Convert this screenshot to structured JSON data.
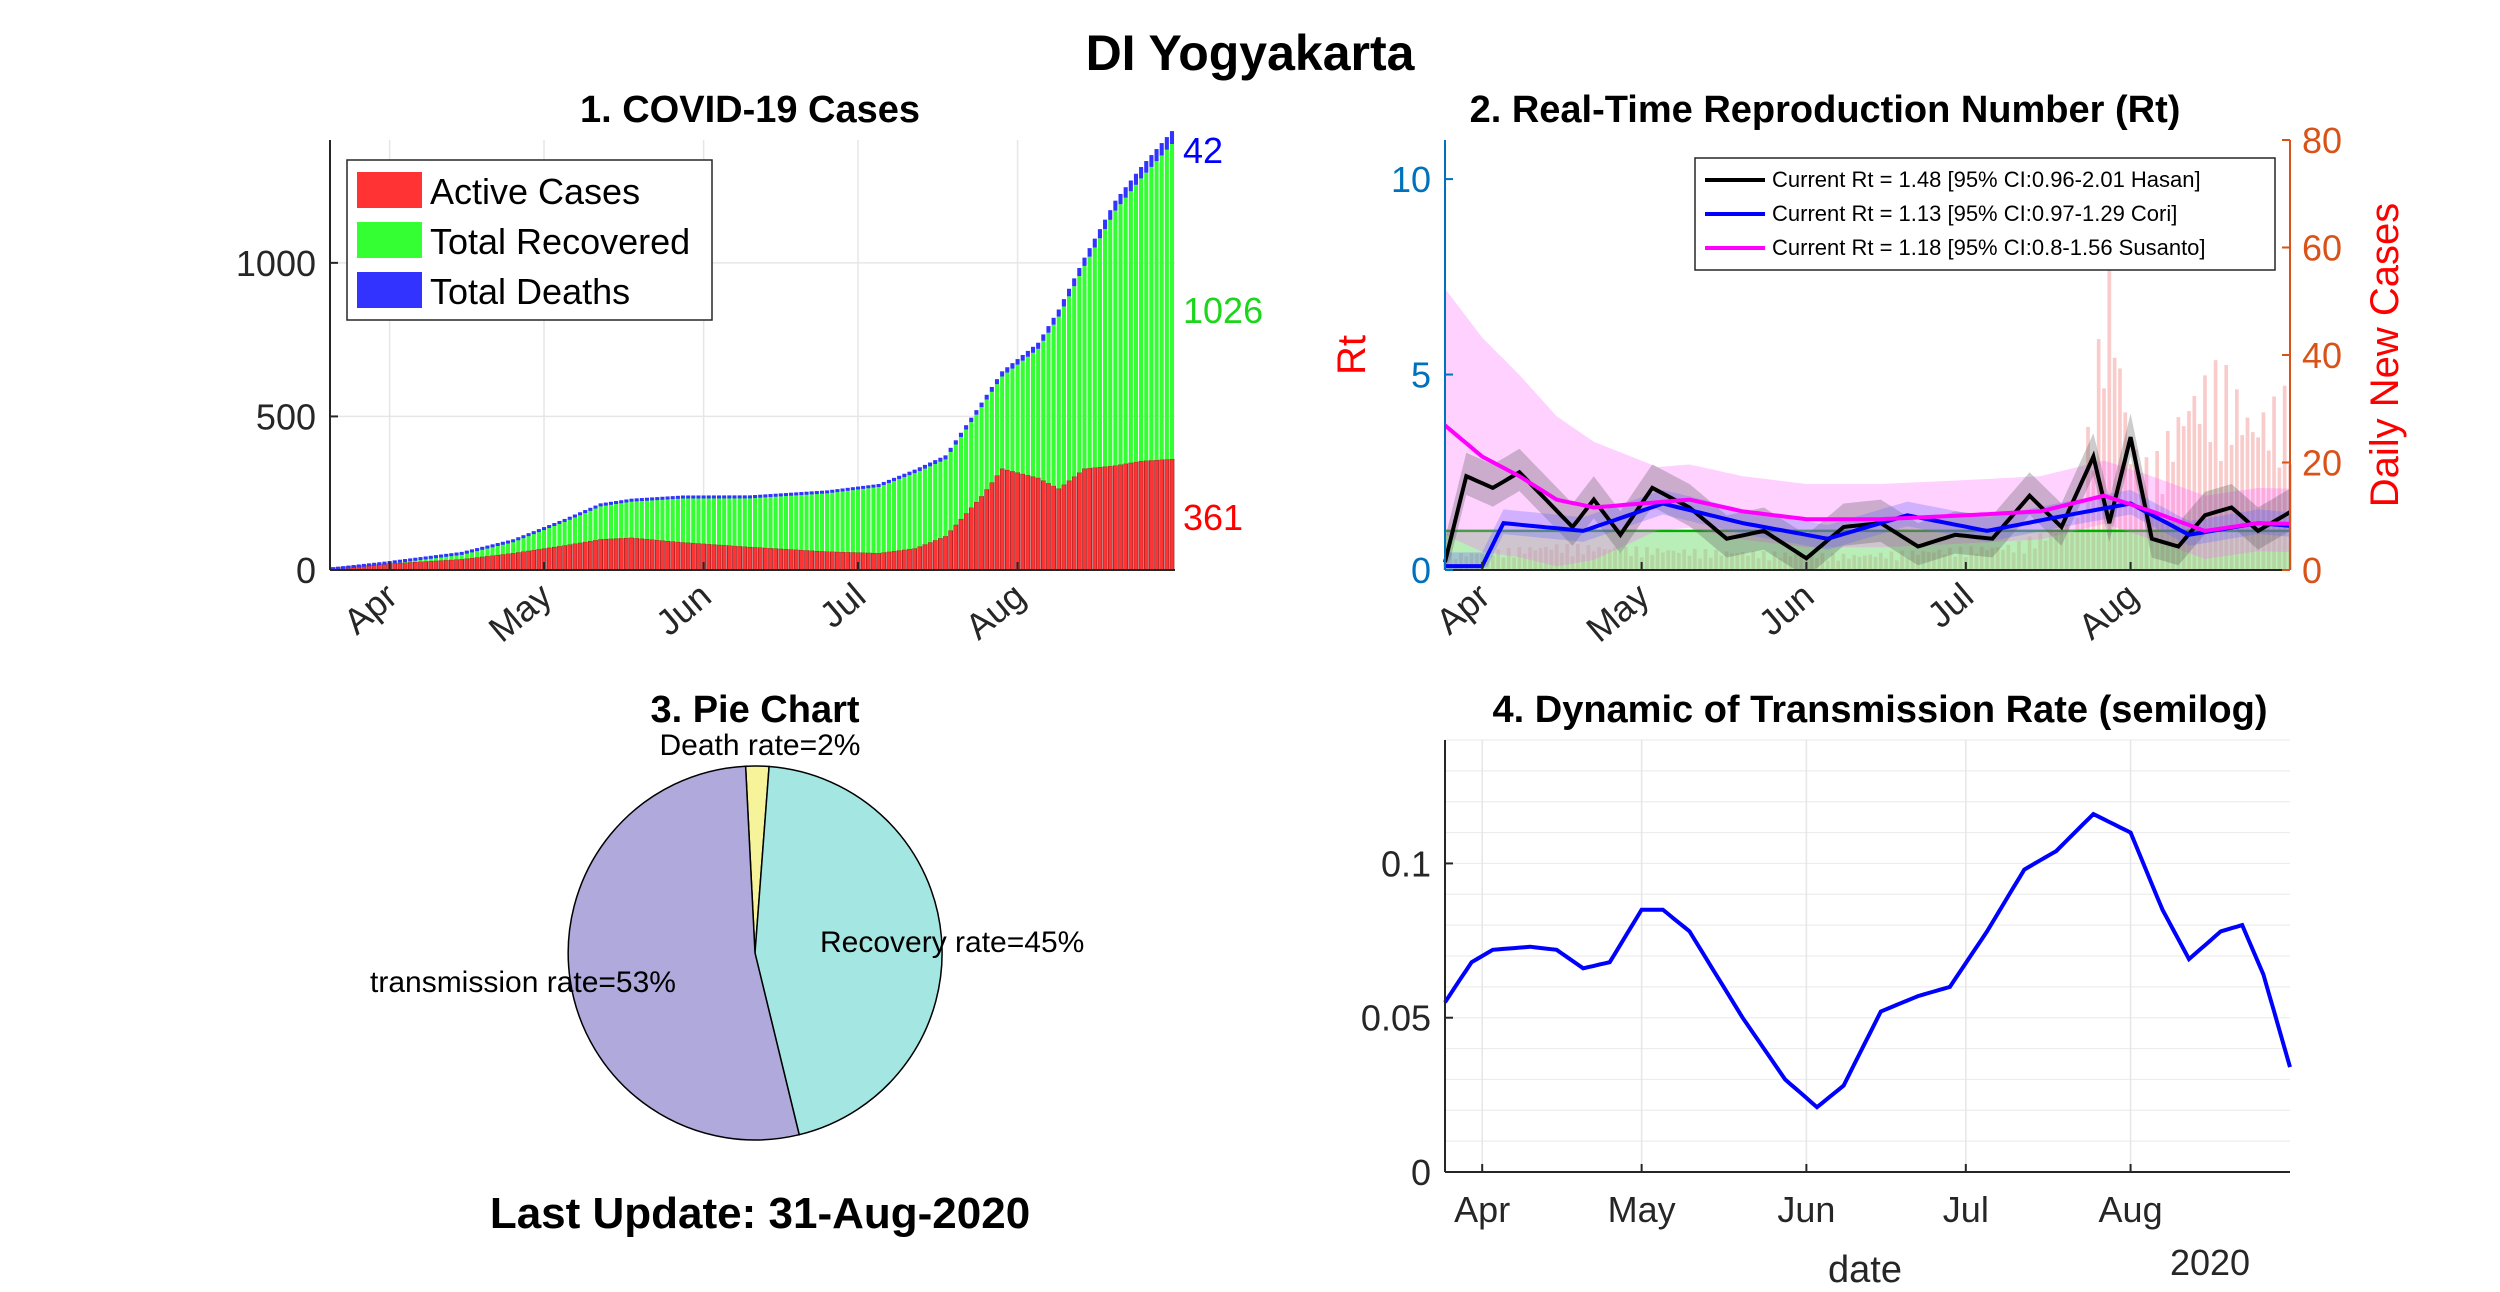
{
  "page": {
    "title": "DI Yogyakarta",
    "last_update": "Last Update: 31-Aug-2020"
  },
  "colors": {
    "active": "#ff3333",
    "recovered": "#33ff33",
    "deaths": "#3333ff",
    "rt_hasan": "#000000",
    "rt_cori": "#0000ff",
    "rt_susanto": "#ff00ff",
    "left_axis": "#0072bd",
    "right_axis": "#d95319",
    "pie_transmission": "#b0a9dc",
    "pie_recovery": "#a4e6e1",
    "pie_death": "#f6f39a",
    "line4": "#0000ff"
  },
  "chart_data": [
    {
      "type": "bar",
      "title": "1. COVID-19 Cases",
      "stacked": true,
      "x_start": "2020-03-21",
      "x_end": "2020-08-31",
      "x_ticks": [
        "Apr",
        "May",
        "Jun",
        "Jul",
        "Aug"
      ],
      "y_ticks": [
        "0",
        "500",
        "1000"
      ],
      "ylim": [
        0,
        1400
      ],
      "grid": true,
      "legend_position": "top-left",
      "series": [
        {
          "name": "Active Cases",
          "color": "#ff3333",
          "points": [
            [
              "2020-03-21",
              8
            ],
            [
              "2020-03-31",
              20
            ],
            [
              "2020-04-15",
              35
            ],
            [
              "2020-04-25",
              55
            ],
            [
              "2020-05-05",
              80
            ],
            [
              "2020-05-12",
              100
            ],
            [
              "2020-05-18",
              105
            ],
            [
              "2020-05-28",
              90
            ],
            [
              "2020-06-10",
              75
            ],
            [
              "2020-06-25",
              60
            ],
            [
              "2020-07-05",
              55
            ],
            [
              "2020-07-12",
              70
            ],
            [
              "2020-07-18",
              110
            ],
            [
              "2020-07-25",
              240
            ],
            [
              "2020-07-29",
              330
            ],
            [
              "2020-08-05",
              300
            ],
            [
              "2020-08-09",
              265
            ],
            [
              "2020-08-14",
              330
            ],
            [
              "2020-08-20",
              340
            ],
            [
              "2020-08-25",
              355
            ],
            [
              "2020-08-31",
              361
            ]
          ]
        },
        {
          "name": "Total Recovered",
          "color": "#33ff33",
          "points": [
            [
              "2020-03-21",
              0
            ],
            [
              "2020-03-31",
              5
            ],
            [
              "2020-04-15",
              20
            ],
            [
              "2020-04-25",
              40
            ],
            [
              "2020-05-05",
              80
            ],
            [
              "2020-05-12",
              110
            ],
            [
              "2020-05-18",
              120
            ],
            [
              "2020-05-28",
              145
            ],
            [
              "2020-06-10",
              160
            ],
            [
              "2020-06-25",
              190
            ],
            [
              "2020-07-05",
              215
            ],
            [
              "2020-07-12",
              245
            ],
            [
              "2020-07-18",
              250
            ],
            [
              "2020-07-25",
              290
            ],
            [
              "2020-07-29",
              300
            ],
            [
              "2020-08-05",
              420
            ],
            [
              "2020-08-09",
              560
            ],
            [
              "2020-08-14",
              660
            ],
            [
              "2020-08-20",
              830
            ],
            [
              "2020-08-25",
              920
            ],
            [
              "2020-08-31",
              1026
            ]
          ]
        },
        {
          "name": "Total Deaths",
          "color": "#3333ff",
          "points": [
            [
              "2020-03-21",
              1
            ],
            [
              "2020-04-15",
              4
            ],
            [
              "2020-05-12",
              7
            ],
            [
              "2020-06-10",
              8
            ],
            [
              "2020-07-05",
              10
            ],
            [
              "2020-07-25",
              15
            ],
            [
              "2020-08-05",
              20
            ],
            [
              "2020-08-14",
              27
            ],
            [
              "2020-08-25",
              37
            ],
            [
              "2020-08-31",
              42
            ]
          ]
        }
      ],
      "end_labels": {
        "deaths": "42",
        "recovered": "1026",
        "active": "361"
      }
    },
    {
      "type": "line",
      "title": "2. Real-Time Reproduction Number (Rt)",
      "x_start": "2020-03-25",
      "x_end": "2020-08-31",
      "x_ticks": [
        "Apr",
        "May",
        "Jun",
        "Jul",
        "Aug"
      ],
      "ylabel_left": "Rt",
      "ylabel_right": "Daily New Cases",
      "y_ticks_left": [
        "0",
        "5",
        "10"
      ],
      "y_ticks_right": [
        "0",
        "20",
        "40",
        "60",
        "80"
      ],
      "ylim_left": [
        0,
        11
      ],
      "ylim_right": [
        0,
        80
      ],
      "threshold": 1,
      "legend_position": "top-right",
      "series": [
        {
          "name": "Current Rt = 1.48 [95% CI:0.96-2.01 Hasan]",
          "color": "#000000",
          "points": [
            [
              "2020-03-25",
              0.2
            ],
            [
              "2020-03-29",
              2.4
            ],
            [
              "2020-04-03",
              2.1
            ],
            [
              "2020-04-08",
              2.5
            ],
            [
              "2020-04-13",
              1.8
            ],
            [
              "2020-04-18",
              1.1
            ],
            [
              "2020-04-22",
              1.8
            ],
            [
              "2020-04-27",
              0.9
            ],
            [
              "2020-05-03",
              2.1
            ],
            [
              "2020-05-10",
              1.6
            ],
            [
              "2020-05-17",
              0.8
            ],
            [
              "2020-05-24",
              1.0
            ],
            [
              "2020-06-01",
              0.3
            ],
            [
              "2020-06-08",
              1.1
            ],
            [
              "2020-06-15",
              1.2
            ],
            [
              "2020-06-22",
              0.6
            ],
            [
              "2020-06-29",
              0.9
            ],
            [
              "2020-07-06",
              0.8
            ],
            [
              "2020-07-13",
              1.9
            ],
            [
              "2020-07-19",
              1.1
            ],
            [
              "2020-07-25",
              2.9
            ],
            [
              "2020-07-28",
              1.2
            ],
            [
              "2020-08-01",
              3.4
            ],
            [
              "2020-08-05",
              0.8
            ],
            [
              "2020-08-10",
              0.6
            ],
            [
              "2020-08-15",
              1.4
            ],
            [
              "2020-08-20",
              1.6
            ],
            [
              "2020-08-25",
              1.0
            ],
            [
              "2020-08-31",
              1.48
            ]
          ]
        },
        {
          "name": "Current Rt = 1.13 [95% CI:0.97-1.29 Cori]",
          "color": "#0000ff",
          "points": [
            [
              "2020-03-25",
              0.1
            ],
            [
              "2020-04-01",
              0.1
            ],
            [
              "2020-04-05",
              1.2
            ],
            [
              "2020-04-20",
              1.0
            ],
            [
              "2020-05-05",
              1.7
            ],
            [
              "2020-05-20",
              1.2
            ],
            [
              "2020-06-05",
              0.8
            ],
            [
              "2020-06-20",
              1.4
            ],
            [
              "2020-07-05",
              1.0
            ],
            [
              "2020-07-20",
              1.4
            ],
            [
              "2020-08-01",
              1.7
            ],
            [
              "2020-08-12",
              0.9
            ],
            [
              "2020-08-25",
              1.2
            ],
            [
              "2020-08-31",
              1.13
            ]
          ]
        },
        {
          "name": "Current Rt = 1.18 [95% CI:0.8-1.56 Susanto]",
          "color": "#ff00ff",
          "points": [
            [
              "2020-03-25",
              3.7
            ],
            [
              "2020-04-01",
              2.9
            ],
            [
              "2020-04-08",
              2.4
            ],
            [
              "2020-04-15",
              1.8
            ],
            [
              "2020-04-22",
              1.6
            ],
            [
              "2020-05-01",
              1.7
            ],
            [
              "2020-05-10",
              1.8
            ],
            [
              "2020-05-20",
              1.5
            ],
            [
              "2020-06-01",
              1.3
            ],
            [
              "2020-06-15",
              1.3
            ],
            [
              "2020-07-01",
              1.4
            ],
            [
              "2020-07-15",
              1.5
            ],
            [
              "2020-07-27",
              1.9
            ],
            [
              "2020-08-05",
              1.5
            ],
            [
              "2020-08-15",
              1.0
            ],
            [
              "2020-08-25",
              1.2
            ],
            [
              "2020-08-31",
              1.18
            ]
          ]
        }
      ],
      "daily_new_cases": [
        [
          "2020-03-25",
          3
        ],
        [
          "2020-04-15",
          5
        ],
        [
          "2020-05-10",
          4
        ],
        [
          "2020-06-10",
          3
        ],
        [
          "2020-07-10",
          5
        ],
        [
          "2020-07-22",
          10
        ],
        [
          "2020-07-28",
          60
        ],
        [
          "2020-08-01",
          25
        ],
        [
          "2020-08-05",
          20
        ],
        [
          "2020-08-12",
          35
        ],
        [
          "2020-08-18",
          40
        ],
        [
          "2020-08-24",
          30
        ],
        [
          "2020-08-31",
          35
        ]
      ]
    },
    {
      "type": "pie",
      "title": "3. Pie Chart",
      "slices": [
        {
          "label": "Death rate=2%",
          "value": 2,
          "color": "#f6f39a"
        },
        {
          "label": "Recovery rate=45%",
          "value": 45,
          "color": "#a4e6e1"
        },
        {
          "label": "transmission rate=53%",
          "value": 53,
          "color": "#b0a9dc"
        }
      ]
    },
    {
      "type": "line",
      "title": "4. Dynamic of Transmission Rate (semilog)",
      "x_start": "2020-03-25",
      "x_end": "2020-08-31",
      "x_ticks": [
        "Apr",
        "May",
        "Jun",
        "Jul",
        "Aug"
      ],
      "xlabel": "date",
      "x_year_label": "2020",
      "y_ticks": [
        "0",
        "0.05",
        "0.1"
      ],
      "ylim": [
        0,
        0.14
      ],
      "grid": true,
      "series": [
        {
          "name": "",
          "color": "#0000ff",
          "points": [
            [
              "2020-03-25",
              0.055
            ],
            [
              "2020-03-30",
              0.068
            ],
            [
              "2020-04-03",
              0.072
            ],
            [
              "2020-04-10",
              0.073
            ],
            [
              "2020-04-15",
              0.072
            ],
            [
              "2020-04-20",
              0.066
            ],
            [
              "2020-04-25",
              0.068
            ],
            [
              "2020-05-01",
              0.085
            ],
            [
              "2020-05-05",
              0.085
            ],
            [
              "2020-05-10",
              0.078
            ],
            [
              "2020-05-20",
              0.05
            ],
            [
              "2020-05-28",
              0.03
            ],
            [
              "2020-06-03",
              0.021
            ],
            [
              "2020-06-08",
              0.028
            ],
            [
              "2020-06-15",
              0.052
            ],
            [
              "2020-06-22",
              0.057
            ],
            [
              "2020-06-28",
              0.06
            ],
            [
              "2020-07-05",
              0.078
            ],
            [
              "2020-07-12",
              0.098
            ],
            [
              "2020-07-18",
              0.104
            ],
            [
              "2020-07-25",
              0.116
            ],
            [
              "2020-08-01",
              0.11
            ],
            [
              "2020-08-07",
              0.085
            ],
            [
              "2020-08-12",
              0.069
            ],
            [
              "2020-08-18",
              0.078
            ],
            [
              "2020-08-22",
              0.08
            ],
            [
              "2020-08-26",
              0.064
            ],
            [
              "2020-08-31",
              0.034
            ]
          ]
        }
      ]
    }
  ]
}
